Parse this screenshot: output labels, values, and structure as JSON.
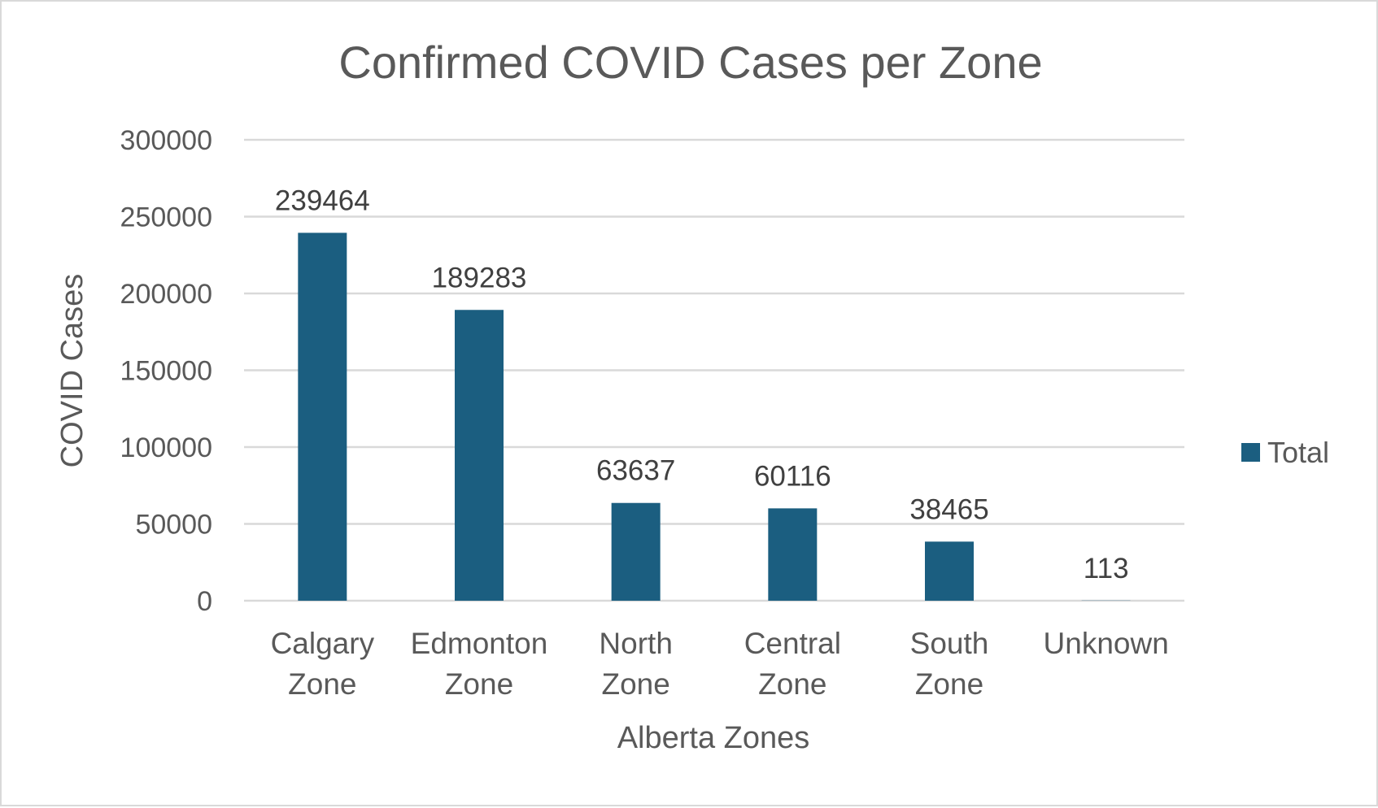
{
  "chart_data": {
    "type": "bar",
    "title": "Confirmed COVID Cases per Zone",
    "xlabel": "Alberta Zones",
    "ylabel": "COVID Cases",
    "categories": [
      [
        "Calgary",
        "Zone"
      ],
      [
        "Edmonton",
        "Zone"
      ],
      [
        "North",
        "Zone"
      ],
      [
        "Central",
        "Zone"
      ],
      [
        "South",
        "Zone"
      ],
      [
        "Unknown"
      ]
    ],
    "series": [
      {
        "name": "Total",
        "color": "#1b5e80",
        "values": [
          239464,
          189283,
          63637,
          60116,
          38465,
          113
        ]
      }
    ],
    "ylim": [
      0,
      300000
    ],
    "yticks": [
      "0",
      "50000",
      "100000",
      "150000",
      "200000",
      "250000",
      "300000"
    ],
    "grid": true,
    "legend_position": "right",
    "data_labels": true
  }
}
